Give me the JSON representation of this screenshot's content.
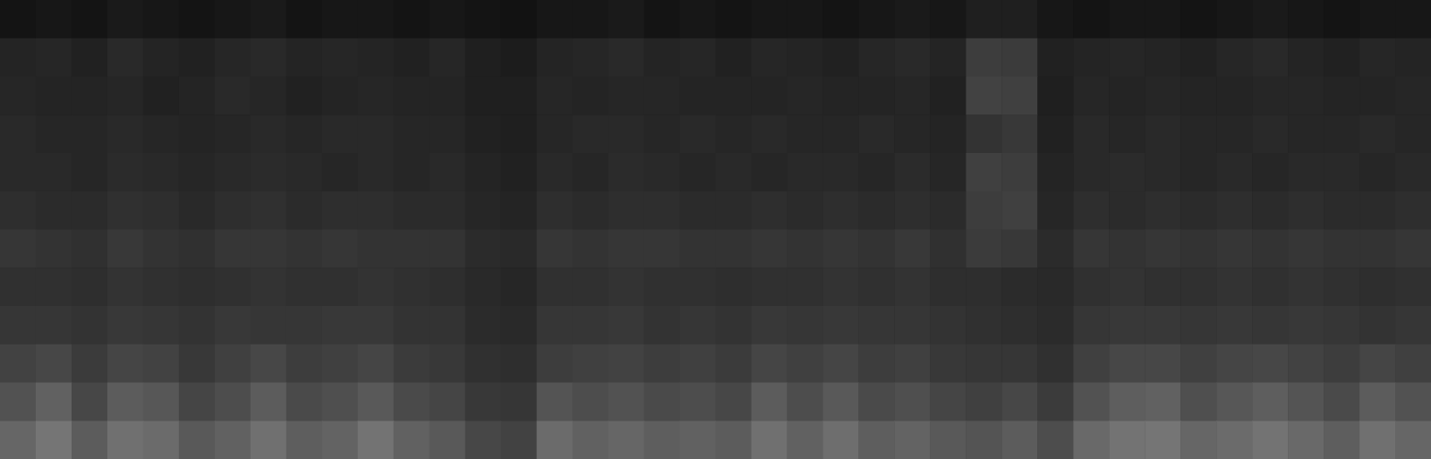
{
  "chart_data": {
    "type": "heatmap",
    "tick_labels": false,
    "color": "#ffffff",
    "zlim": [
      0,
      100
    ],
    "cells": [
      [
        8,
        9,
        8,
        10,
        9,
        8,
        9,
        10,
        8,
        9,
        9,
        8,
        9,
        8,
        7,
        9,
        9,
        10,
        8,
        9,
        8,
        9,
        9,
        8,
        9,
        10,
        9,
        12,
        12,
        9,
        8,
        9,
        9,
        8,
        9,
        10,
        9,
        8,
        9,
        9
      ],
      [
        14,
        15,
        13,
        16,
        14,
        13,
        15,
        16,
        14,
        15,
        14,
        13,
        15,
        12,
        11,
        14,
        15,
        16,
        14,
        15,
        13,
        15,
        14,
        13,
        15,
        16,
        14,
        24,
        23,
        13,
        14,
        15,
        14,
        13,
        15,
        16,
        14,
        13,
        15,
        14
      ],
      [
        15,
        14,
        14,
        15,
        13,
        14,
        16,
        15,
        13,
        14,
        15,
        14,
        14,
        12,
        12,
        15,
        14,
        15,
        15,
        14,
        14,
        14,
        15,
        14,
        14,
        15,
        13,
        26,
        25,
        12,
        15,
        14,
        15,
        14,
        14,
        15,
        15,
        14,
        14,
        15
      ],
      [
        16,
        15,
        15,
        16,
        15,
        14,
        15,
        16,
        15,
        16,
        16,
        15,
        15,
        13,
        12,
        15,
        16,
        16,
        15,
        16,
        15,
        16,
        15,
        15,
        16,
        15,
        14,
        20,
        22,
        13,
        16,
        15,
        16,
        15,
        15,
        16,
        15,
        15,
        16,
        15
      ],
      [
        16,
        16,
        15,
        17,
        16,
        15,
        16,
        17,
        16,
        15,
        16,
        15,
        16,
        14,
        13,
        16,
        15,
        17,
        16,
        15,
        16,
        15,
        16,
        16,
        15,
        17,
        15,
        25,
        24,
        14,
        16,
        17,
        16,
        15,
        16,
        15,
        16,
        16,
        15,
        16
      ],
      [
        18,
        17,
        17,
        19,
        18,
        16,
        18,
        19,
        17,
        18,
        18,
        17,
        17,
        15,
        14,
        18,
        17,
        18,
        18,
        17,
        17,
        18,
        17,
        18,
        17,
        18,
        17,
        24,
        25,
        15,
        18,
        17,
        18,
        17,
        18,
        17,
        18,
        17,
        17,
        18
      ],
      [
        21,
        20,
        19,
        22,
        20,
        19,
        21,
        21,
        20,
        21,
        20,
        20,
        20,
        17,
        16,
        21,
        20,
        21,
        21,
        20,
        20,
        21,
        20,
        21,
        20,
        22,
        19,
        23,
        22,
        17,
        21,
        20,
        21,
        20,
        21,
        20,
        21,
        20,
        20,
        21
      ],
      [
        19,
        19,
        18,
        20,
        19,
        18,
        19,
        20,
        19,
        19,
        20,
        19,
        18,
        16,
        15,
        19,
        19,
        20,
        19,
        19,
        18,
        19,
        19,
        20,
        19,
        20,
        18,
        18,
        17,
        16,
        19,
        20,
        19,
        19,
        20,
        19,
        20,
        19,
        18,
        19
      ],
      [
        21,
        21,
        20,
        22,
        21,
        20,
        22,
        21,
        21,
        22,
        22,
        20,
        20,
        17,
        16,
        21,
        21,
        22,
        20,
        21,
        20,
        22,
        21,
        22,
        21,
        21,
        20,
        19,
        18,
        17,
        21,
        22,
        22,
        21,
        22,
        21,
        22,
        21,
        20,
        21
      ],
      [
        26,
        28,
        23,
        27,
        26,
        22,
        25,
        28,
        24,
        25,
        27,
        23,
        22,
        19,
        18,
        24,
        25,
        26,
        24,
        25,
        23,
        27,
        25,
        27,
        24,
        25,
        22,
        21,
        21,
        19,
        25,
        28,
        28,
        25,
        27,
        28,
        26,
        24,
        27,
        25
      ],
      [
        32,
        38,
        28,
        36,
        34,
        27,
        30,
        36,
        29,
        31,
        35,
        29,
        27,
        22,
        21,
        33,
        30,
        32,
        29,
        30,
        28,
        36,
        30,
        35,
        29,
        31,
        27,
        25,
        28,
        23,
        32,
        37,
        38,
        31,
        34,
        37,
        33,
        29,
        36,
        32
      ],
      [
        40,
        46,
        36,
        44,
        42,
        35,
        38,
        44,
        37,
        39,
        45,
        38,
        35,
        28,
        26,
        42,
        38,
        40,
        37,
        38,
        36,
        44,
        38,
        43,
        37,
        39,
        35,
        33,
        36,
        30,
        41,
        45,
        46,
        40,
        42,
        45,
        41,
        37,
        44,
        40
      ]
    ]
  }
}
